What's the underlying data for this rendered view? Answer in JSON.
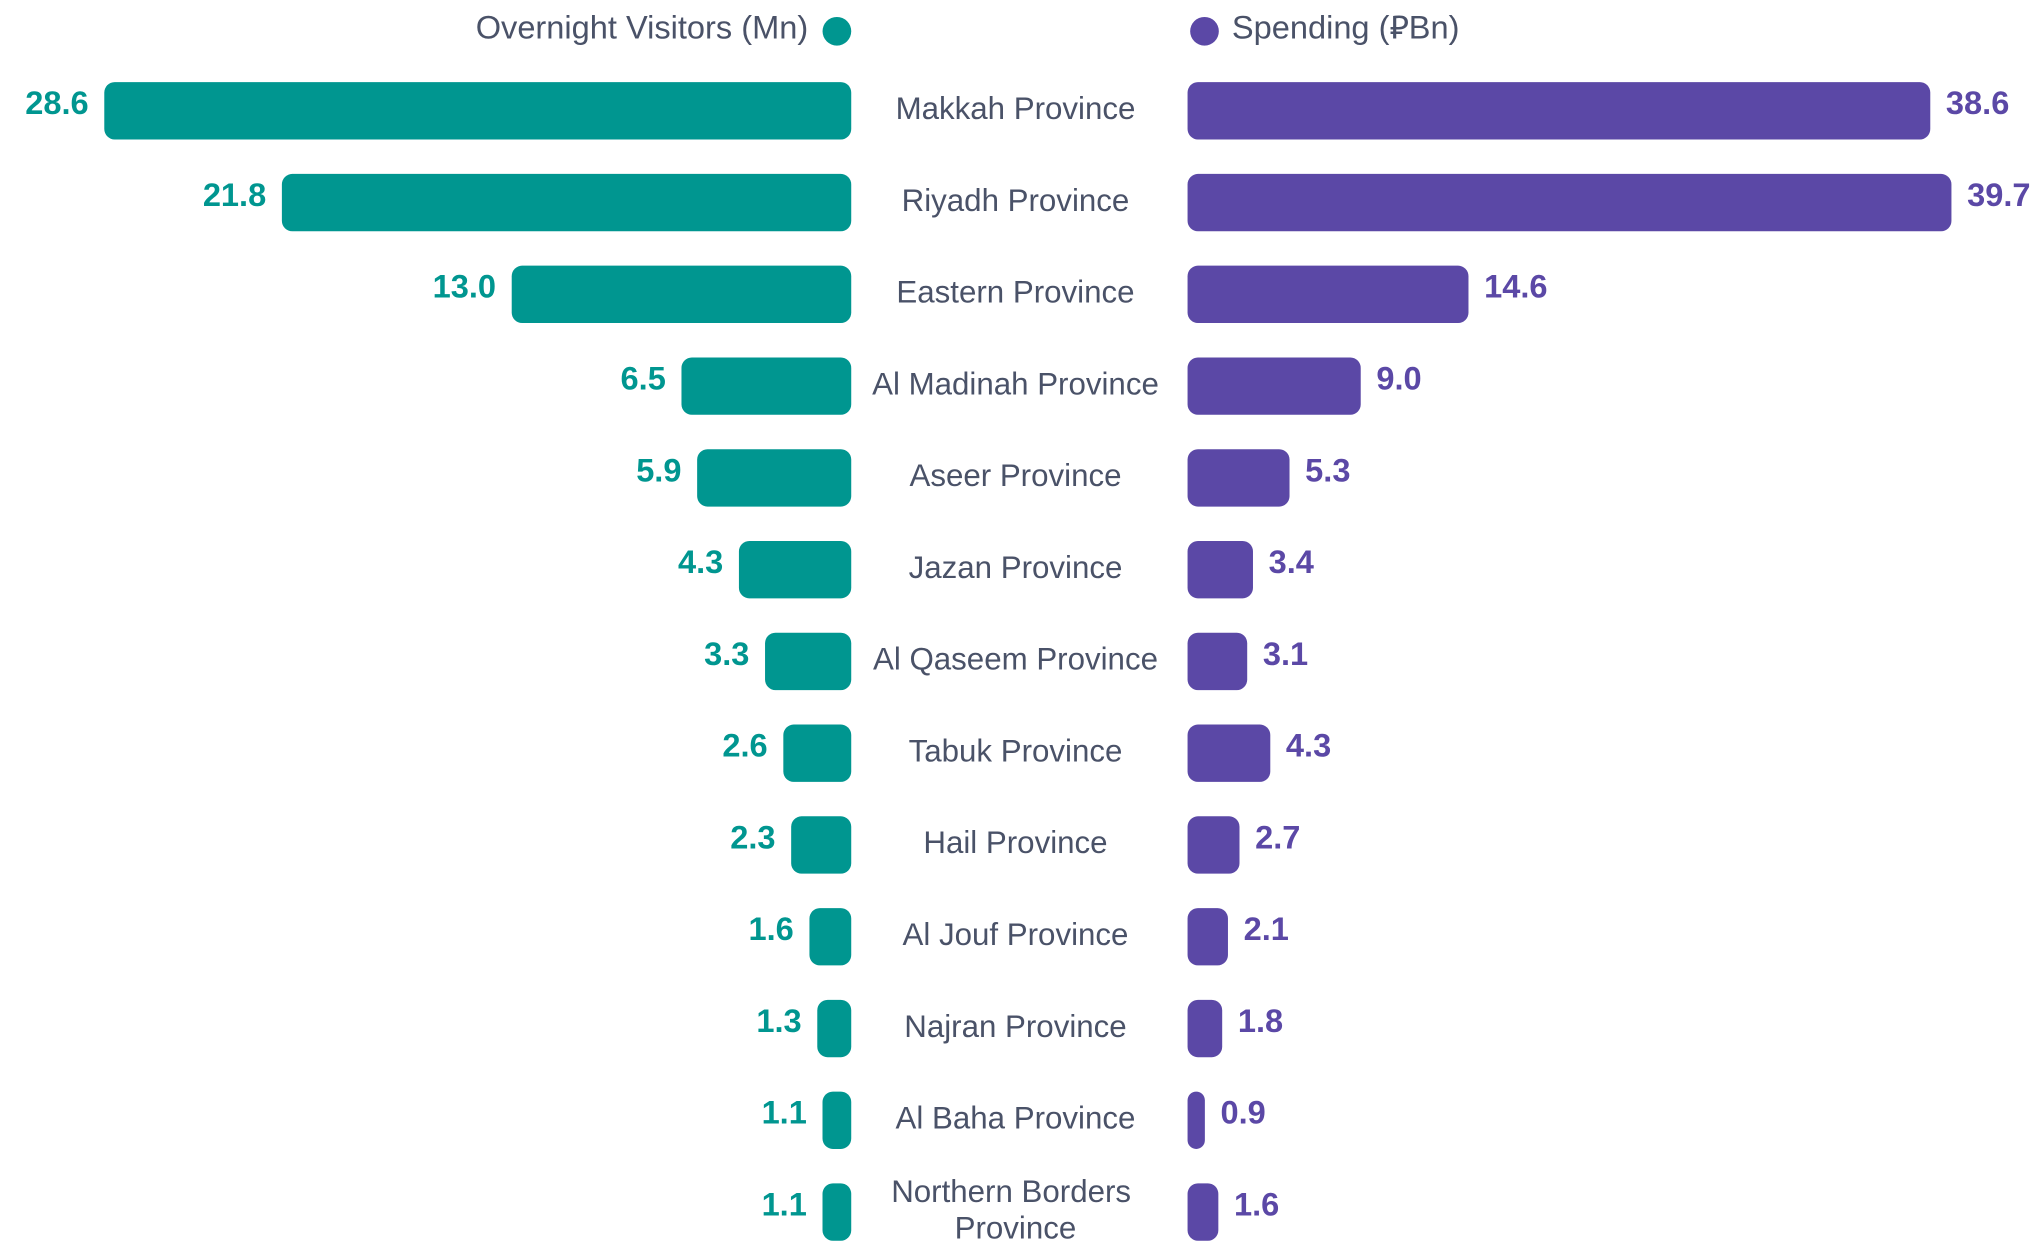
{
  "chart_data": {
    "type": "bar",
    "categories": [
      "Makkah Province",
      "Riyadh Province",
      "Eastern Province",
      "Al Madinah Province",
      "Aseer Province",
      "Jazan Province",
      "Al Qaseem Province",
      "Tabuk Province",
      "Hail Province",
      "Al Jouf Province",
      "Najran Province",
      "Al Baha Province",
      "Northern Borders Province"
    ],
    "series": [
      {
        "name": "Overnight Visitors (Mn)",
        "color": "#009690",
        "values": [
          28.6,
          21.8,
          13.0,
          6.5,
          5.9,
          4.3,
          3.3,
          2.6,
          2.3,
          1.6,
          1.3,
          1.1,
          1.1
        ],
        "value_labels": [
          "28.6",
          "21.8",
          "13.0",
          "6.5",
          "5.9",
          "4.3",
          "3.3",
          "2.6",
          "2.3",
          "1.6",
          "1.3",
          "1.1",
          "1.1"
        ]
      },
      {
        "name": "Spending (⃁Bn)",
        "color": "#5b48a6",
        "values": [
          38.6,
          39.7,
          14.6,
          9.0,
          5.3,
          3.4,
          3.1,
          4.3,
          2.7,
          2.1,
          1.8,
          0.9,
          1.6
        ],
        "value_labels": [
          "38.6",
          "39.7",
          "14.6",
          "9.0",
          "5.3",
          "3.4",
          "3.1",
          "4.3",
          "2.7",
          "2.1",
          "1.8",
          "0.9",
          "1.6"
        ]
      }
    ]
  }
}
